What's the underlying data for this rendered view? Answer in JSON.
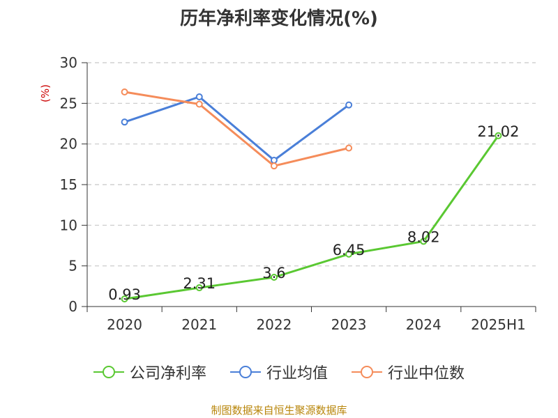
{
  "colors": {
    "company": "#5ac832",
    "industry_avg": "#4a7fd8",
    "industry_median": "#f58c5a",
    "title": "#333333",
    "unit": "#cc0000",
    "source": "#b8860b"
  },
  "chart_data": {
    "type": "line",
    "title": "历年净利率变化情况(%)",
    "ylabel": "(%)",
    "xlabel": "",
    "categories": [
      "2020",
      "2021",
      "2022",
      "2023",
      "2024",
      "2025H1"
    ],
    "ylim": [
      0,
      30
    ],
    "yticks": [
      0,
      5,
      10,
      15,
      20,
      25,
      30
    ],
    "grid": true,
    "legend_position": "bottom",
    "series": [
      {
        "name": "公司净利率",
        "values": [
          0.93,
          2.31,
          3.6,
          6.45,
          8.02,
          21.02
        ],
        "labels": [
          "0.93",
          "2.31",
          "3.6",
          "6.45",
          "8.02",
          "21.02"
        ]
      },
      {
        "name": "行业均值",
        "values": [
          22.7,
          25.8,
          18.0,
          24.8,
          null,
          null
        ]
      },
      {
        "name": "行业中位数",
        "values": [
          26.4,
          24.9,
          17.3,
          19.5,
          null,
          null
        ]
      }
    ]
  },
  "source": "制图数据来自恒生聚源数据库"
}
